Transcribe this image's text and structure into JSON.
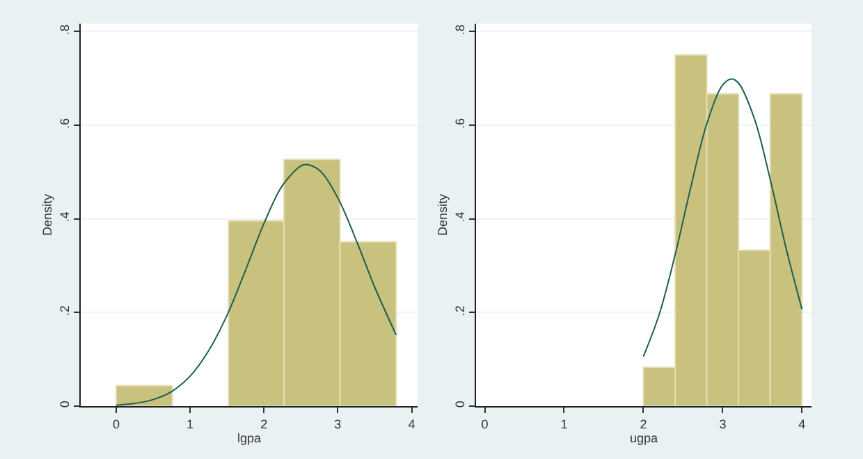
{
  "chart_data": [
    {
      "type": "histogram",
      "xlabel": "lgpa",
      "ylabel": "Density",
      "bins": [
        0,
        0.76,
        1.52,
        2.27,
        3.03,
        3.79
      ],
      "values": [
        0.044,
        0,
        0.396,
        0.527,
        0.351
      ],
      "color": "#c9c17e",
      "series": [
        {
          "type": "line",
          "color": "#1d5e4e",
          "x": [
            0,
            0.25,
            0.5,
            0.75,
            1.0,
            1.25,
            1.5,
            1.75,
            2.0,
            2.25,
            2.5,
            2.58,
            2.75,
            3.0,
            3.25,
            3.5,
            3.79
          ],
          "values": [
            0.002,
            0.006,
            0.014,
            0.031,
            0.064,
            0.118,
            0.194,
            0.29,
            0.39,
            0.471,
            0.513,
            0.516,
            0.504,
            0.445,
            0.354,
            0.254,
            0.152
          ]
        }
      ],
      "xlim": [
        -0.48,
        4.08
      ],
      "xticks": [
        0,
        1,
        2,
        3,
        4
      ],
      "ylim": [
        0,
        0.817
      ],
      "yticks": [
        0,
        {
          "value": 0.2,
          "label": ".2"
        },
        {
          "value": 0.4,
          "label": ".4"
        },
        {
          "value": 0.6,
          "label": ".6"
        },
        {
          "value": 0.8,
          "label": ".8"
        }
      ],
      "grid": "y"
    },
    {
      "type": "histogram",
      "xlabel": "ugpa",
      "ylabel": "Density",
      "bins": [
        2.0,
        2.4,
        2.8,
        3.2,
        3.6,
        4.0
      ],
      "values": [
        0.083,
        0.75,
        0.667,
        0.333,
        0.667
      ],
      "color": "#c9c17e",
      "series": [
        {
          "type": "line",
          "color": "#1d5e4e",
          "x": [
            2.0,
            2.2,
            2.4,
            2.6,
            2.8,
            3.0,
            3.11,
            3.2,
            3.4,
            3.6,
            3.8,
            4.0
          ],
          "values": [
            0.106,
            0.196,
            0.323,
            0.469,
            0.603,
            0.686,
            0.699,
            0.69,
            0.614,
            0.484,
            0.337,
            0.207
          ]
        }
      ],
      "xlim": [
        -0.11,
        4.12
      ],
      "xticks": [
        0,
        1,
        2,
        3,
        4
      ],
      "ylim": [
        0,
        0.817
      ],
      "yticks": [
        0,
        {
          "value": 0.2,
          "label": ".2"
        },
        {
          "value": 0.4,
          "label": ".4"
        },
        {
          "value": 0.6,
          "label": ".6"
        },
        {
          "value": 0.8,
          "label": ".8"
        }
      ],
      "grid": "y"
    }
  ]
}
